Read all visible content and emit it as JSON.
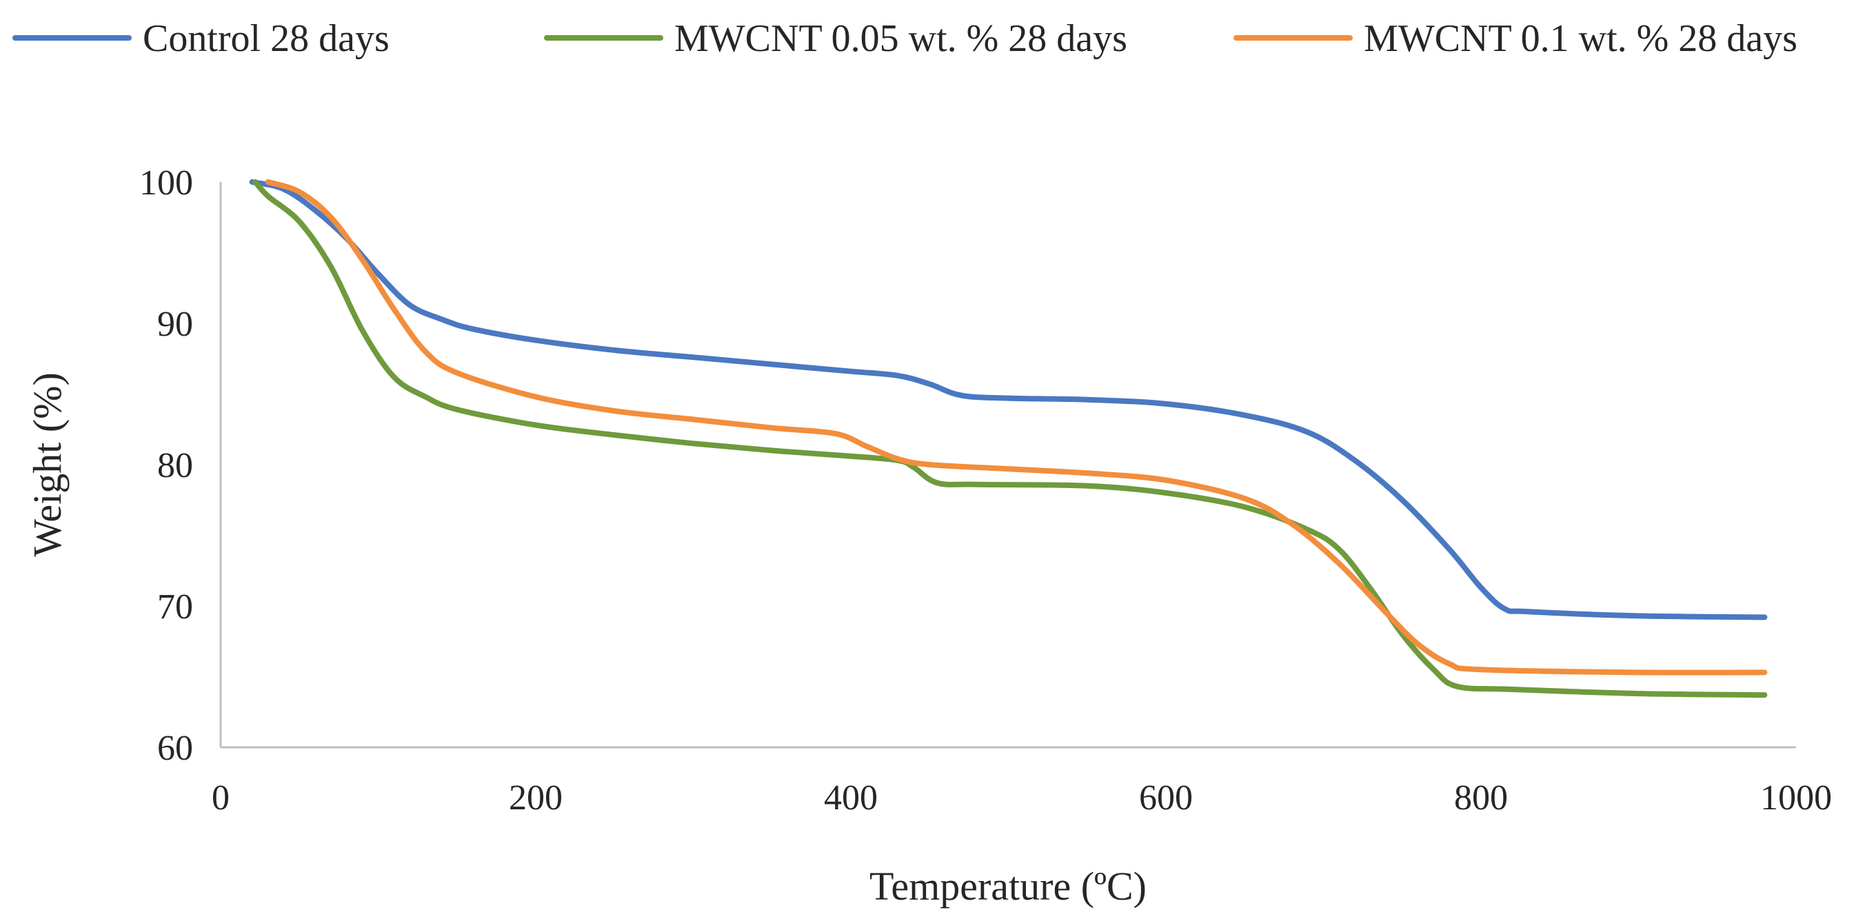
{
  "chart_data": {
    "type": "line",
    "title": "",
    "xlabel": "Temperature (ºC)",
    "ylabel": "Weight  (%)",
    "xlim": [
      0,
      1000
    ],
    "ylim": [
      60,
      100
    ],
    "xticks": [
      0,
      200,
      400,
      600,
      800,
      1000
    ],
    "yticks": [
      60,
      70,
      80,
      90,
      100
    ],
    "grid": false,
    "legend_position": "top",
    "series": [
      {
        "name": "Control 28 days",
        "color": "#4a78c2",
        "points": [
          [
            20,
            100
          ],
          [
            40,
            99.5
          ],
          [
            60,
            98
          ],
          [
            80,
            96
          ],
          [
            100,
            93.5
          ],
          [
            120,
            91.3
          ],
          [
            140,
            90.3
          ],
          [
            160,
            89.6
          ],
          [
            200,
            88.8
          ],
          [
            250,
            88.1
          ],
          [
            300,
            87.6
          ],
          [
            350,
            87.1
          ],
          [
            400,
            86.6
          ],
          [
            430,
            86.3
          ],
          [
            450,
            85.7
          ],
          [
            470,
            84.9
          ],
          [
            500,
            84.7
          ],
          [
            550,
            84.6
          ],
          [
            600,
            84.3
          ],
          [
            650,
            83.5
          ],
          [
            690,
            82.3
          ],
          [
            720,
            80.3
          ],
          [
            750,
            77.5
          ],
          [
            780,
            74
          ],
          [
            800,
            71.3
          ],
          [
            815,
            69.8
          ],
          [
            830,
            69.6
          ],
          [
            900,
            69.3
          ],
          [
            980,
            69.2
          ]
        ]
      },
      {
        "name": "MWCNT 0.05 wt. % 28 days",
        "color": "#6f9a3c",
        "points": [
          [
            22,
            100
          ],
          [
            30,
            99
          ],
          [
            50,
            97.2
          ],
          [
            70,
            94
          ],
          [
            90,
            89.5
          ],
          [
            110,
            86.2
          ],
          [
            130,
            84.8
          ],
          [
            150,
            83.9
          ],
          [
            200,
            82.8
          ],
          [
            250,
            82.1
          ],
          [
            300,
            81.5
          ],
          [
            350,
            81
          ],
          [
            400,
            80.6
          ],
          [
            430,
            80.3
          ],
          [
            440,
            79.8
          ],
          [
            455,
            78.7
          ],
          [
            480,
            78.6
          ],
          [
            550,
            78.5
          ],
          [
            600,
            78
          ],
          [
            650,
            77
          ],
          [
            690,
            75.4
          ],
          [
            710,
            74
          ],
          [
            730,
            71.2
          ],
          [
            750,
            68
          ],
          [
            770,
            65.5
          ],
          [
            785,
            64.3
          ],
          [
            820,
            64.1
          ],
          [
            900,
            63.8
          ],
          [
            980,
            63.7
          ]
        ]
      },
      {
        "name": "MWCNT 0.1 wt. % 28 days",
        "color": "#f28e3c",
        "points": [
          [
            30,
            100
          ],
          [
            50,
            99.3
          ],
          [
            70,
            97.5
          ],
          [
            90,
            94.5
          ],
          [
            110,
            91
          ],
          [
            130,
            88
          ],
          [
            150,
            86.5
          ],
          [
            200,
            84.8
          ],
          [
            250,
            83.8
          ],
          [
            300,
            83.2
          ],
          [
            350,
            82.6
          ],
          [
            390,
            82.2
          ],
          [
            410,
            81.3
          ],
          [
            430,
            80.4
          ],
          [
            450,
            80
          ],
          [
            500,
            79.7
          ],
          [
            550,
            79.4
          ],
          [
            600,
            78.9
          ],
          [
            650,
            77.6
          ],
          [
            680,
            75.8
          ],
          [
            710,
            73
          ],
          [
            740,
            69.5
          ],
          [
            760,
            67.3
          ],
          [
            780,
            65.9
          ],
          [
            800,
            65.5
          ],
          [
            900,
            65.3
          ],
          [
            980,
            65.3
          ]
        ]
      }
    ]
  }
}
